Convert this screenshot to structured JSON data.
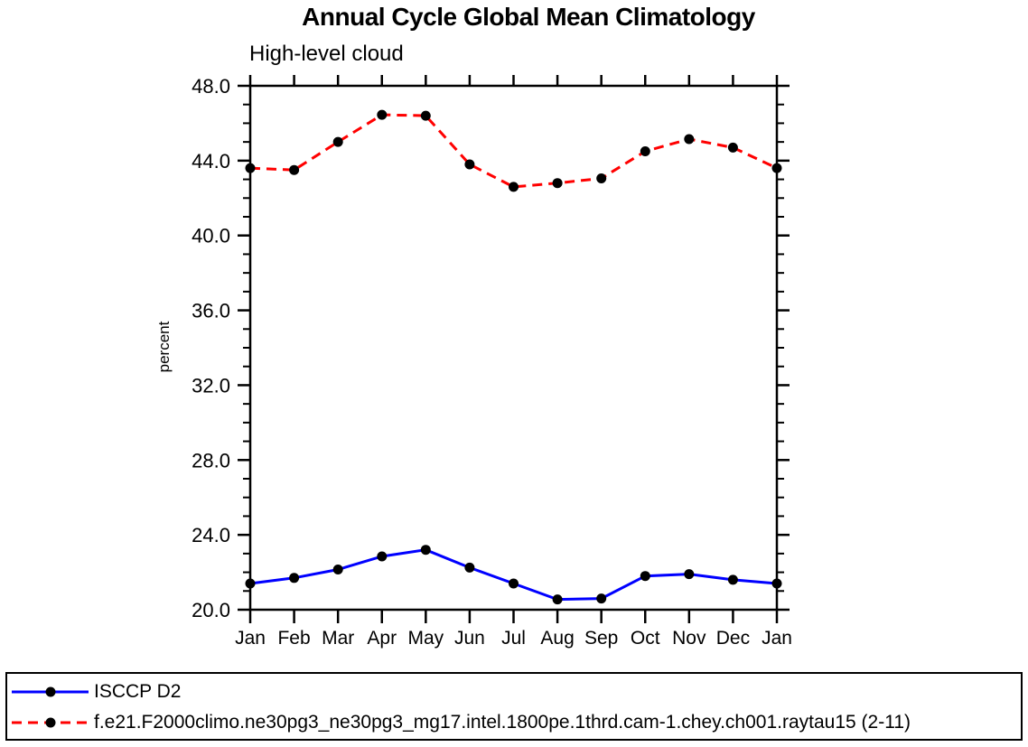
{
  "chart_data": {
    "type": "line",
    "title": "Annual Cycle Global Mean Climatology",
    "subtitle": "High-level cloud",
    "ylabel": "percent",
    "xlabel": "",
    "categories": [
      "Jan",
      "Feb",
      "Mar",
      "Apr",
      "May",
      "Jun",
      "Jul",
      "Aug",
      "Sep",
      "Oct",
      "Nov",
      "Dec",
      "Jan"
    ],
    "ylim": [
      20,
      48
    ],
    "ytick_major_step": 4,
    "ytick_minor_step": 1,
    "ytick_decimals": 1,
    "grid": false,
    "legend_position": "bottom",
    "axis_color": "#000000",
    "marker": {
      "shape": "circle",
      "color": "#000000"
    },
    "series": [
      {
        "name": "ISCCP D2",
        "color": "#0000ff",
        "line_style": "solid",
        "dash": "",
        "values": [
          21.4,
          21.7,
          22.15,
          22.85,
          23.2,
          22.25,
          21.4,
          20.55,
          20.6,
          21.8,
          21.9,
          21.6,
          21.4
        ]
      },
      {
        "name": "f.e21.F2000climo.ne30pg3_ne30pg3_mg17.intel.1800pe.1thrd.cam-1.chey.ch001.raytau15 (2-11)",
        "color": "#ff0000",
        "line_style": "dashed",
        "dash": "11,7",
        "values": [
          43.6,
          43.5,
          45.0,
          46.45,
          46.4,
          43.8,
          42.6,
          42.8,
          43.05,
          44.5,
          45.15,
          44.7,
          43.6
        ]
      }
    ]
  }
}
